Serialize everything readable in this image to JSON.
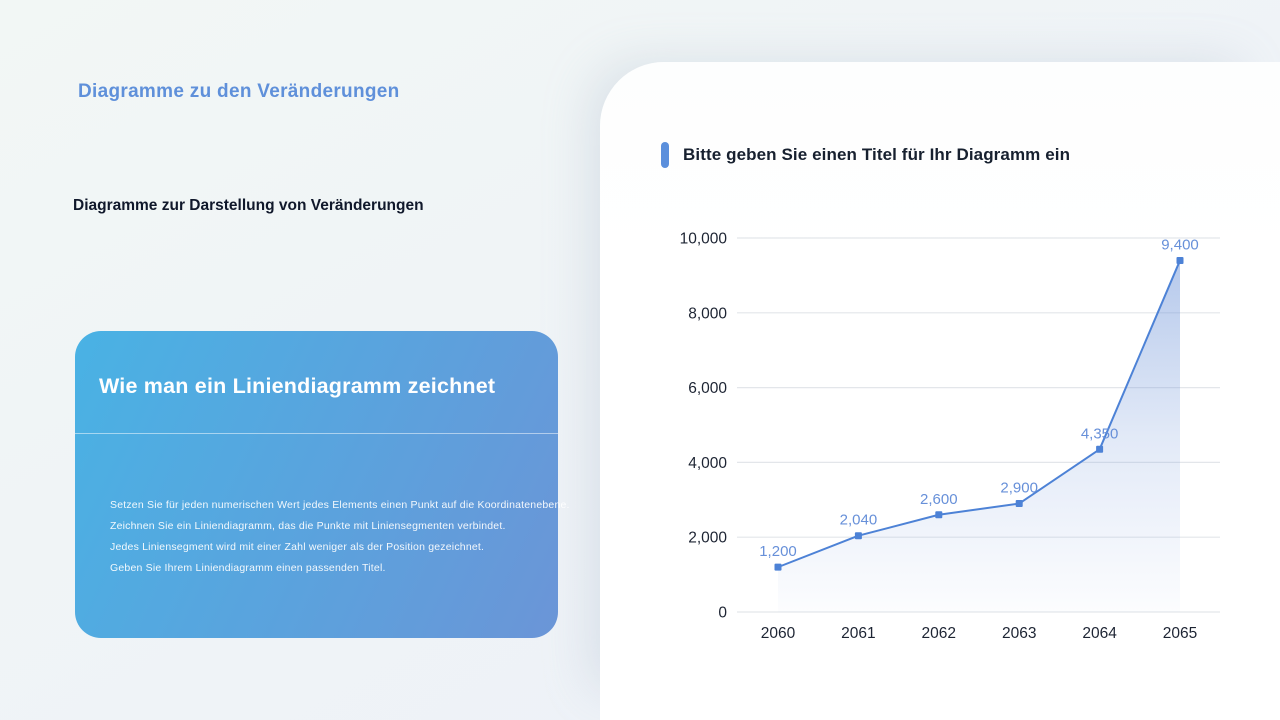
{
  "page": {
    "kicker": "Diagramme zu den Veränderungen",
    "subtitle": "Diagramme zur Darstellung von Veränderungen"
  },
  "card": {
    "title": "Wie man ein Liniendiagramm zeichnet",
    "bullets": [
      "Setzen Sie für jeden numerischen Wert jedes Elements einen Punkt auf die Koordinatenebene.",
      "Zeichnen Sie ein Liniendiagramm, das die Punkte mit Liniensegmenten verbindet.",
      "Jedes Liniensegment wird mit einer Zahl weniger als der Position gezeichnet.",
      "Geben Sie Ihrem Liniendiagramm einen passenden Titel."
    ],
    "gradient_start": "#49b2e4",
    "gradient_end": "#6b95d7"
  },
  "chart_panel": {
    "title": "Bitte geben Sie einen Titel für Ihr Diagramm ein",
    "accent_color": "#5b8fdc"
  },
  "chart_data": {
    "type": "line",
    "title": "Bitte geben Sie einen Titel für Ihr Diagramm ein",
    "categories": [
      "2060",
      "2061",
      "2062",
      "2063",
      "2064",
      "2065"
    ],
    "values": [
      1200,
      2040,
      2600,
      2900,
      4350,
      9400
    ],
    "point_labels": [
      "1,200",
      "2,040",
      "2,600",
      "2,900",
      "4,350",
      "9,400"
    ],
    "y_tick_labels": [
      "0",
      "2,000",
      "4,000",
      "6,000",
      "8,000",
      "10,000"
    ],
    "y_tick_values": [
      0,
      2000,
      4000,
      6000,
      8000,
      10000
    ],
    "ylim": [
      0,
      10000
    ],
    "xlabel": "",
    "ylabel": "",
    "grid": true,
    "legend_position": "none",
    "area_fill": true,
    "marker": "square",
    "colors": {
      "line": "#4d82d6",
      "marker": "#4d82d6",
      "point_label": "#6790d9",
      "axis_label": "#1d2433",
      "grid": "#e3e6ea",
      "area_top": "rgba(109,147,216,0.50)",
      "area_bottom": "rgba(109,147,216,0.02)"
    }
  }
}
